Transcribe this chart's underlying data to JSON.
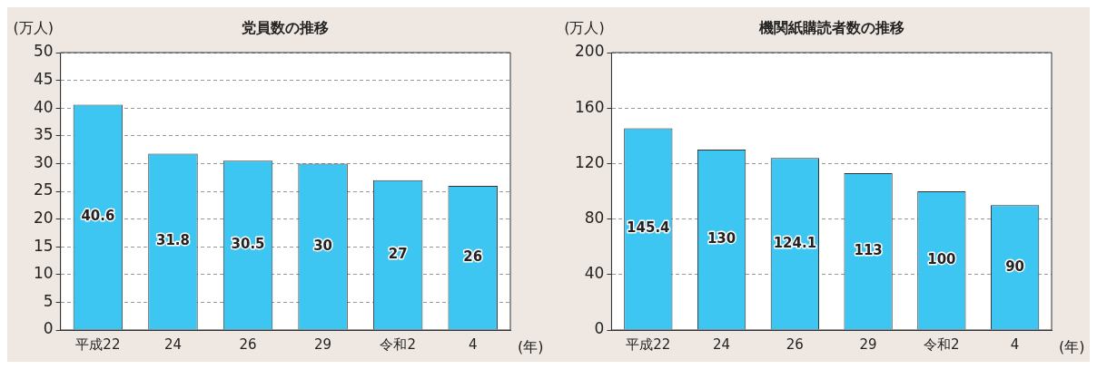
{
  "chart_data": [
    {
      "type": "bar",
      "title": "党員数の推移",
      "ylabel": "(万人)",
      "xlabel": "(年)",
      "categories": [
        "平成22",
        "24",
        "26",
        "29",
        "令和2",
        "4"
      ],
      "values": [
        40.6,
        31.8,
        30.5,
        30,
        27,
        26
      ],
      "color": "#3ec6f2",
      "ylim": [
        0,
        50
      ],
      "yticks": [
        0,
        5,
        10,
        15,
        20,
        25,
        30,
        35,
        40,
        45,
        50
      ],
      "grid": "y",
      "data_labels": true
    },
    {
      "type": "bar",
      "title": "機関紙購読者数の推移",
      "ylabel": "(万人)",
      "xlabel": "(年)",
      "categories": [
        "平成22",
        "24",
        "26",
        "29",
        "令和2",
        "4"
      ],
      "values": [
        145.4,
        130,
        124.1,
        113,
        100,
        90
      ],
      "color": "#3ec6f2",
      "ylim": [
        0,
        200
      ],
      "yticks": [
        0,
        40,
        80,
        120,
        160,
        200
      ],
      "grid": "y",
      "data_labels": true
    }
  ]
}
